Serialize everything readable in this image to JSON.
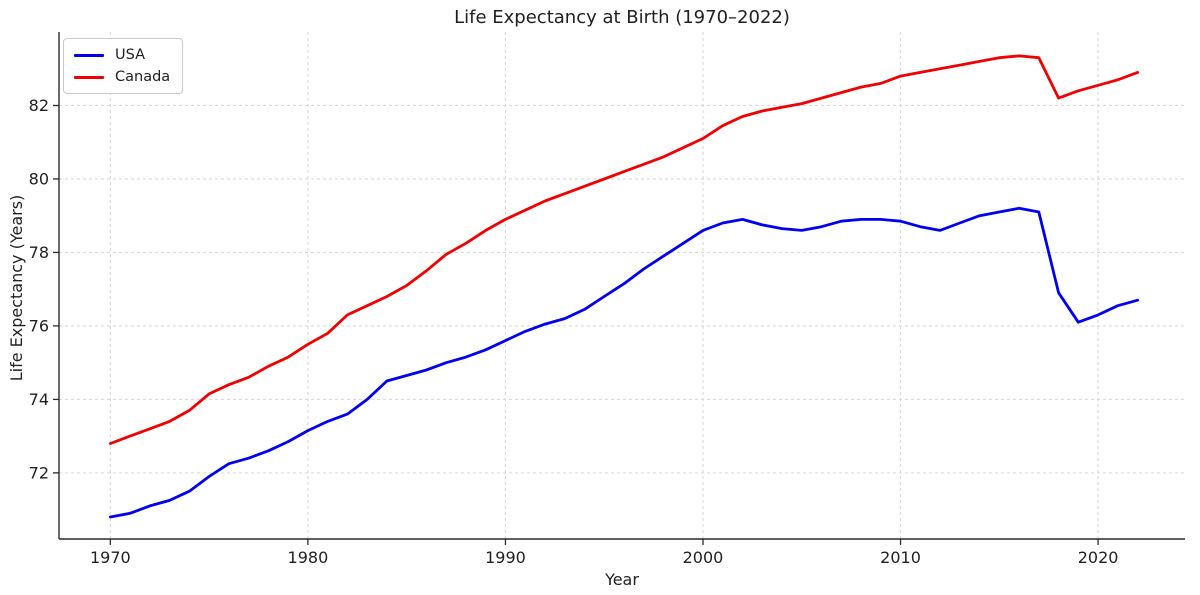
{
  "chart": {
    "title": "Life Expectancy at Birth (1970–2022)",
    "xlabel": "Year",
    "ylabel": "Life Expectancy (Years)"
  },
  "chart_data": {
    "type": "line",
    "title": "Life Expectancy at Birth (1970–2022)",
    "xlabel": "Year",
    "ylabel": "Life Expectancy (Years)",
    "grid": true,
    "grid_style": "dashed",
    "legend_position": "upper left",
    "xlim": [
      1967.4,
      2024.4
    ],
    "ylim": [
      70.2,
      84.0
    ],
    "xticks": [
      1970,
      1980,
      1990,
      2000,
      2010,
      2020
    ],
    "yticks": [
      72,
      74,
      76,
      78,
      80,
      82
    ],
    "x": [
      1970,
      1971,
      1972,
      1973,
      1974,
      1975,
      1976,
      1977,
      1978,
      1979,
      1980,
      1981,
      1982,
      1983,
      1984,
      1985,
      1986,
      1987,
      1988,
      1989,
      1990,
      1991,
      1992,
      1993,
      1994,
      1995,
      1996,
      1997,
      1998,
      1999,
      2000,
      2001,
      2002,
      2003,
      2004,
      2005,
      2006,
      2007,
      2008,
      2009,
      2010,
      2011,
      2012,
      2013,
      2014,
      2015,
      2016,
      2017,
      2018,
      2019,
      2020,
      2021,
      2022
    ],
    "series": [
      {
        "name": "USA",
        "color": "#0000f0",
        "values": [
          70.8,
          70.9,
          71.1,
          71.25,
          71.5,
          71.9,
          72.25,
          72.4,
          72.6,
          72.85,
          73.15,
          73.4,
          73.6,
          74.0,
          74.5,
          74.65,
          74.8,
          75.0,
          75.15,
          75.35,
          75.6,
          75.85,
          76.05,
          76.2,
          76.45,
          76.8,
          77.15,
          77.55,
          77.9,
          78.25,
          78.6,
          78.8,
          78.9,
          78.75,
          78.65,
          78.6,
          78.7,
          78.85,
          78.9,
          78.9,
          78.85,
          78.7,
          78.6,
          78.8,
          79.0,
          79.1,
          79.2,
          79.1,
          76.9,
          76.1,
          76.3,
          76.55,
          76.7
        ]
      },
      {
        "name": "Canada",
        "color": "#f00000",
        "values": [
          72.8,
          73.0,
          73.2,
          73.4,
          73.7,
          74.15,
          74.4,
          74.6,
          74.9,
          75.15,
          75.5,
          75.8,
          76.3,
          76.55,
          76.8,
          77.1,
          77.5,
          77.95,
          78.25,
          78.6,
          78.9,
          79.15,
          79.4,
          79.6,
          79.8,
          80.0,
          80.2,
          80.4,
          80.6,
          80.85,
          81.1,
          81.45,
          81.7,
          81.85,
          81.95,
          82.05,
          82.2,
          82.35,
          82.5,
          82.6,
          82.8,
          82.9,
          83.0,
          83.1,
          83.2,
          83.3,
          83.35,
          83.3,
          82.2,
          82.4,
          82.55,
          82.7,
          82.9
        ]
      }
    ],
    "style": {
      "background": "#ffffff",
      "grid_color": "#d9d9d9",
      "spine_color": "#2b2b2b",
      "tick_label_color": "#1f1f1f",
      "line_width": 2.8
    }
  }
}
